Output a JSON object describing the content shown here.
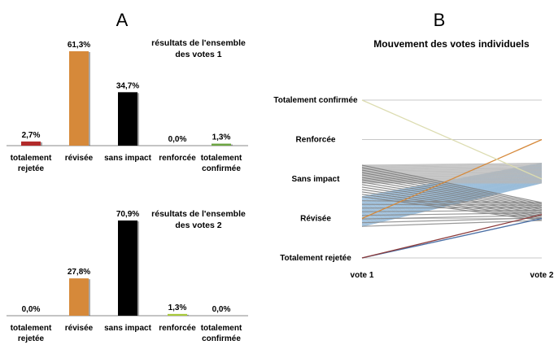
{
  "panel_a": {
    "letter": "A",
    "charts": [
      {
        "title_lines": [
          "résultats de l'ensemble",
          "des votes 1"
        ]
      },
      {
        "title_lines": [
          "résultats de l'ensemble",
          "des votes 2"
        ]
      }
    ]
  },
  "panel_b": {
    "letter": "B"
  },
  "chart_data": [
    {
      "type": "bar",
      "title": "résultats de l'ensemble des votes 1",
      "categories": [
        [
          "totalement",
          "rejetée"
        ],
        [
          "révisée"
        ],
        [
          "sans impact"
        ],
        [
          "renforcée"
        ],
        [
          "totalement",
          "confirmée"
        ]
      ],
      "values": [
        2.7,
        61.3,
        34.7,
        0.0,
        1.3
      ],
      "value_labels": [
        "2,7%",
        "61,3%",
        "34,7%",
        "0,0%",
        "1,3%"
      ],
      "bar_colors": [
        "#b22a2a",
        "#d6893a",
        "#000000",
        "#6da542",
        "#6da542"
      ],
      "ylim": [
        0,
        61.3
      ],
      "grid": false
    },
    {
      "type": "bar",
      "title": "résultats de l'ensemble des votes 2",
      "categories": [
        [
          "totalement",
          "rejetée"
        ],
        [
          "révisée"
        ],
        [
          "sans impact"
        ],
        [
          "renforcée"
        ],
        [
          "totalement",
          "confirmée"
        ]
      ],
      "values": [
        0.0,
        27.8,
        70.9,
        1.3,
        0.0
      ],
      "value_labels": [
        "0,0%",
        "27,8%",
        "70,9%",
        "1,3%",
        "0,0%"
      ],
      "bar_colors": [
        "#b22a2a",
        "#d6893a",
        "#000000",
        "#a8c93a",
        "#6da542"
      ],
      "ylim": [
        0,
        70.9
      ],
      "grid": false
    },
    {
      "type": "line",
      "title": "Mouvement des votes individuels",
      "x": [
        "vote 1",
        "vote 2"
      ],
      "levels": [
        "Totalement rejetée",
        "Révisée",
        "Sans impact",
        "Renforcée",
        "Totalement confirmée"
      ],
      "level_values": [
        1,
        2,
        3,
        4,
        5
      ],
      "ylim": [
        1,
        5
      ],
      "grid": true,
      "series_groups": [
        {
          "from": 2,
          "to": 3,
          "count": 30,
          "color": "#8fb6d6",
          "spread_from": [
            1.8,
            2.55
          ],
          "spread_to": [
            2.9,
            3.4
          ]
        },
        {
          "from": 3,
          "to": 3,
          "count": 20,
          "color": "#b8b8b8",
          "spread_from": [
            2.9,
            3.35
          ],
          "spread_to": [
            2.9,
            3.4
          ]
        },
        {
          "from": 3,
          "to": 2,
          "count": 14,
          "color": "#7a7a7a",
          "spread_from": [
            2.55,
            3.35
          ],
          "spread_to": [
            1.95,
            2.4
          ]
        },
        {
          "from": 2,
          "to": 2,
          "count": 8,
          "color": "#888888",
          "spread_from": [
            1.8,
            2.45
          ],
          "spread_to": [
            1.95,
            2.4
          ]
        },
        {
          "from": 1,
          "to": 2,
          "count": 1,
          "color": "#4a6fa5",
          "spread_from": [
            1,
            1
          ],
          "spread_to": [
            2,
            2
          ]
        },
        {
          "from": 1,
          "to": 3,
          "count": 1,
          "color": "#8b3a3a",
          "spread_from": [
            1,
            1
          ],
          "spread_to": [
            2.1,
            2.1
          ]
        },
        {
          "from": 2,
          "to": 4,
          "count": 1,
          "color": "#d6893a",
          "spread_from": [
            2,
            2
          ],
          "spread_to": [
            4,
            4
          ]
        },
        {
          "from": 5,
          "to": 3,
          "count": 1,
          "color": "#dcdcb0",
          "spread_from": [
            5,
            5
          ],
          "spread_to": [
            3,
            3
          ]
        }
      ]
    }
  ]
}
